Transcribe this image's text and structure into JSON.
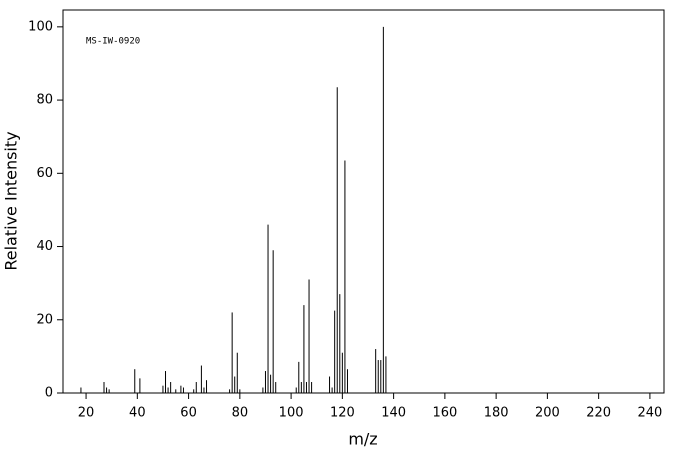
{
  "chart_data": {
    "type": "stem",
    "annotation": "MS-IW-0920",
    "xlabel": "m/z",
    "ylabel": "Relative Intensity",
    "color": "#000000",
    "x": [
      18,
      27,
      28,
      29,
      39,
      41,
      50,
      51,
      52,
      53,
      55,
      57,
      58,
      62,
      63,
      65,
      66,
      67,
      76,
      77,
      78,
      79,
      80,
      89,
      90,
      91,
      92,
      93,
      94,
      102,
      103,
      104,
      105,
      106,
      107,
      108,
      115,
      116,
      117,
      118,
      119,
      120,
      121,
      122,
      133,
      134,
      135,
      136,
      137
    ],
    "values": [
      1.5,
      3,
      1.5,
      1,
      6.5,
      4,
      2,
      6,
      1.5,
      3,
      1,
      2,
      1.5,
      1,
      3,
      7.5,
      1.5,
      3.5,
      1,
      22,
      4.5,
      11,
      1,
      1.5,
      6,
      46,
      5,
      39,
      3,
      1.5,
      8.5,
      3,
      24,
      3,
      31,
      3,
      4.5,
      1.5,
      22.5,
      83.5,
      27,
      11,
      63.5,
      6.5,
      12,
      9,
      9,
      100,
      10
    ],
    "xlim": [
      11,
      245.5
    ],
    "ylim": [
      0,
      104.6
    ],
    "xticks": [
      20,
      40,
      60,
      80,
      100,
      120,
      140,
      160,
      180,
      200,
      220,
      240
    ],
    "yticks": [
      0,
      20,
      40,
      60,
      80,
      100
    ]
  }
}
